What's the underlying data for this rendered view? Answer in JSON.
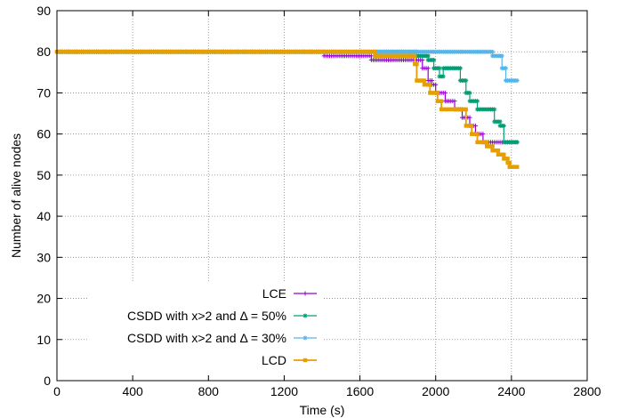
{
  "chart_data": {
    "type": "line",
    "xlabel": "Time (s)",
    "ylabel": "Number of alive nodes",
    "xlim": [
      0,
      2800
    ],
    "ylim": [
      0,
      90
    ],
    "xticks": [
      0,
      400,
      800,
      1200,
      1600,
      2000,
      2400,
      2800
    ],
    "yticks": [
      0,
      10,
      20,
      30,
      40,
      50,
      60,
      70,
      80,
      90
    ],
    "grid": true,
    "legend_position": "bottom-center",
    "series": [
      {
        "name": "LCE",
        "color": "#9400d3",
        "marker": "plus",
        "points": [
          [
            0,
            80
          ],
          [
            1410,
            80
          ],
          [
            1410,
            79
          ],
          [
            1660,
            79
          ],
          [
            1660,
            78
          ],
          [
            1930,
            78
          ],
          [
            1930,
            76
          ],
          [
            1960,
            76
          ],
          [
            1960,
            73
          ],
          [
            1980,
            73
          ],
          [
            1980,
            72
          ],
          [
            2000,
            72
          ],
          [
            2000,
            70
          ],
          [
            2050,
            70
          ],
          [
            2050,
            68
          ],
          [
            2100,
            68
          ],
          [
            2100,
            66
          ],
          [
            2140,
            66
          ],
          [
            2140,
            64
          ],
          [
            2180,
            64
          ],
          [
            2180,
            62
          ],
          [
            2210,
            62
          ],
          [
            2210,
            60
          ],
          [
            2250,
            60
          ],
          [
            2250,
            58
          ],
          [
            2430,
            58
          ]
        ]
      },
      {
        "name": "CSDD with x>2 and Δ = 50%",
        "color": "#009e73",
        "marker": "star",
        "points": [
          [
            0,
            80
          ],
          [
            1900,
            80
          ],
          [
            1900,
            79
          ],
          [
            1960,
            79
          ],
          [
            1960,
            78
          ],
          [
            1990,
            78
          ],
          [
            1990,
            76
          ],
          [
            2020,
            76
          ],
          [
            2020,
            74
          ],
          [
            2040,
            74
          ],
          [
            2040,
            76
          ],
          [
            2130,
            76
          ],
          [
            2130,
            73
          ],
          [
            2160,
            73
          ],
          [
            2160,
            70
          ],
          [
            2180,
            70
          ],
          [
            2180,
            68
          ],
          [
            2220,
            68
          ],
          [
            2220,
            66
          ],
          [
            2310,
            66
          ],
          [
            2310,
            63
          ],
          [
            2340,
            63
          ],
          [
            2340,
            62
          ],
          [
            2360,
            62
          ],
          [
            2360,
            58
          ],
          [
            2430,
            58
          ]
        ]
      },
      {
        "name": "CSDD with x>2 and Δ = 30%",
        "color": "#56b4e9",
        "marker": "asterisk",
        "points": [
          [
            0,
            80
          ],
          [
            2300,
            80
          ],
          [
            2300,
            79
          ],
          [
            2350,
            79
          ],
          [
            2350,
            76
          ],
          [
            2370,
            76
          ],
          [
            2370,
            73
          ],
          [
            2430,
            73
          ]
        ]
      },
      {
        "name": "LCD",
        "color": "#e69f00",
        "marker": "square",
        "points": [
          [
            0,
            80
          ],
          [
            1680,
            80
          ],
          [
            1680,
            79
          ],
          [
            1890,
            79
          ],
          [
            1890,
            77
          ],
          [
            1900,
            77
          ],
          [
            1900,
            73
          ],
          [
            1940,
            73
          ],
          [
            1940,
            72
          ],
          [
            1970,
            72
          ],
          [
            1970,
            70
          ],
          [
            2010,
            70
          ],
          [
            2010,
            68
          ],
          [
            2030,
            68
          ],
          [
            2030,
            66
          ],
          [
            2160,
            66
          ],
          [
            2160,
            62
          ],
          [
            2190,
            62
          ],
          [
            2190,
            60
          ],
          [
            2220,
            60
          ],
          [
            2220,
            58
          ],
          [
            2270,
            58
          ],
          [
            2270,
            57
          ],
          [
            2300,
            57
          ],
          [
            2300,
            56
          ],
          [
            2330,
            56
          ],
          [
            2330,
            55
          ],
          [
            2360,
            55
          ],
          [
            2360,
            54
          ],
          [
            2380,
            54
          ],
          [
            2380,
            53
          ],
          [
            2390,
            53
          ],
          [
            2390,
            52
          ],
          [
            2430,
            52
          ]
        ]
      }
    ]
  }
}
